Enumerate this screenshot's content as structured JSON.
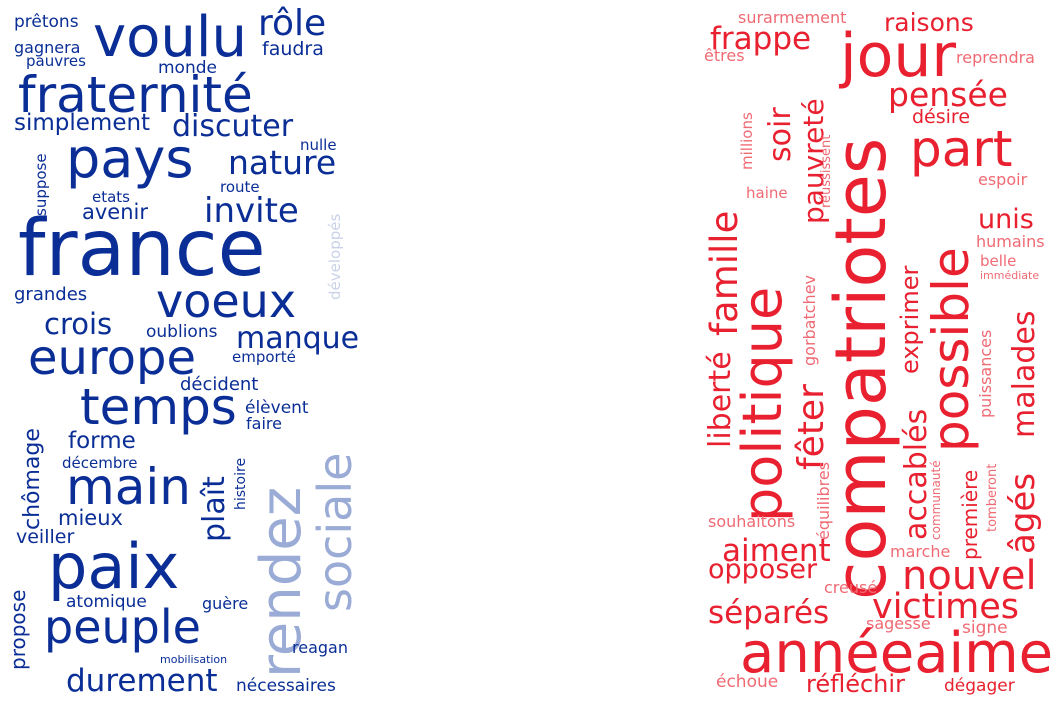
{
  "colors": {
    "blue_dark": "#0a2e96",
    "blue_light": "#c9d2e8",
    "blue_mid": "#9aabd6",
    "red": "#e8202f",
    "red_light": "#f06a73"
  },
  "left_cloud": {
    "words": [
      "prêtons",
      "voulu",
      "rôle",
      "gagnera",
      "pauvres",
      "faudra",
      "monde",
      "fraternité",
      "simplement",
      "discuter",
      "nulle",
      "pays",
      "nature",
      "suppose",
      "route",
      "etats",
      "avenir",
      "invite",
      "france",
      "développés",
      "grandes",
      "voeux",
      "crois",
      "oublions",
      "manque",
      "europe",
      "emporté",
      "sociale",
      "décident",
      "temps",
      "chômage",
      "élèvent",
      "faire",
      "forme",
      "rendez",
      "histoire",
      "plaît",
      "décembre",
      "main",
      "mieux",
      "veiller",
      "paix",
      "propose",
      "atomique",
      "guère",
      "peuple",
      "reagan",
      "mobilisation",
      "durement",
      "nécessaires"
    ]
  },
  "right_cloud": {
    "words": [
      "surarmement",
      "raisons",
      "frappe",
      "jour",
      "êtres",
      "reprendra",
      "pensée",
      "millions",
      "soir",
      "part",
      "désire",
      "pauvreté",
      "famille",
      "haine",
      "réussissent",
      "espoir",
      "compatriotes",
      "politique",
      "possible",
      "unis",
      "humains",
      "belle",
      "immédiate",
      "liberté",
      "gorbatchev",
      "exprimer",
      "malades",
      "fêter",
      "accablés",
      "équilibres",
      "puissances",
      "âgés",
      "première",
      "communauté",
      "tomberont",
      "souhaitons",
      "aiment",
      "nouvel",
      "marche",
      "opposer",
      "creusé",
      "victimes",
      "séparés",
      "sagesse",
      "signe",
      "annéeaime",
      "échoue",
      "réfléchir",
      "dégager"
    ]
  }
}
